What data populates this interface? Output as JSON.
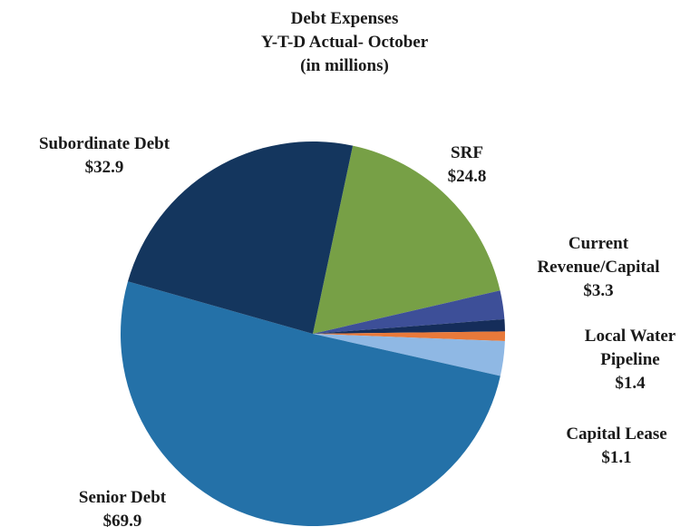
{
  "chart_data": {
    "type": "pie",
    "title": "Debt Expenses",
    "subtitle": "Y-T-D Actual- October",
    "units": "(in millions)",
    "categories": [
      "SRF",
      "Current Revenue/Capital",
      "Local Water Pipeline",
      "Capital Lease",
      null,
      "Senior Debt",
      "Subordinate Debt"
    ],
    "values": [
      24.8,
      3.3,
      1.4,
      1.1,
      4,
      69.9,
      32.9
    ],
    "value_labels": [
      "$24.8",
      "$3.3",
      "$1.4",
      "$1.1",
      null,
      "$69.9",
      "$32.9"
    ],
    "colors": [
      "#77a046",
      "#3d4f98",
      "#152d5a",
      "#e8793a",
      "#8fb8e4",
      "#2471a8",
      "#14365e"
    ]
  }
}
